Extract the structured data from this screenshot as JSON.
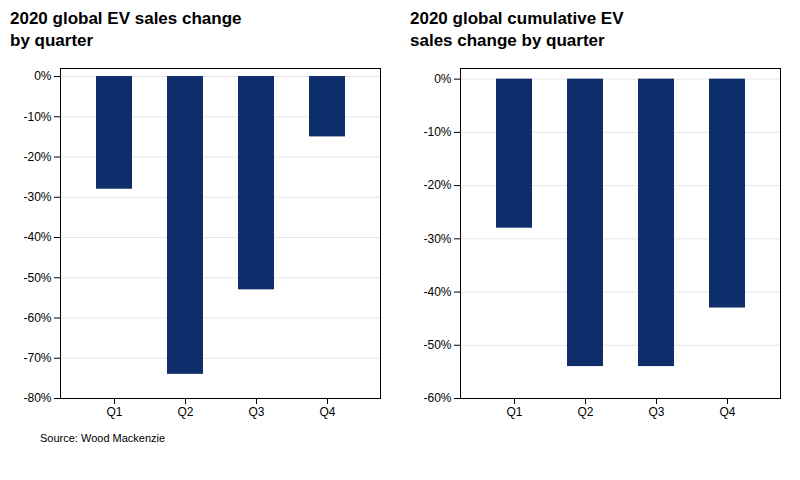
{
  "chart_data": [
    {
      "type": "bar",
      "title": "2020 global EV sales change\nby quarter",
      "categories": [
        "Q1",
        "Q2",
        "Q3",
        "Q4"
      ],
      "values": [
        -28,
        -74,
        -53,
        -15
      ],
      "color": "#0d2d6b",
      "ylim": [
        -80,
        2
      ],
      "yticks": [
        {
          "value": 0,
          "label": "0%"
        },
        {
          "value": -10,
          "label": "-10%"
        },
        {
          "value": -20,
          "label": "-20%"
        },
        {
          "value": -30,
          "label": "-30%"
        },
        {
          "value": -40,
          "label": "-40%"
        },
        {
          "value": -50,
          "label": "-50%"
        },
        {
          "value": -60,
          "label": "-60%"
        },
        {
          "value": -70,
          "label": "-70%"
        },
        {
          "value": -80,
          "label": "-80%"
        }
      ],
      "grid": true
    },
    {
      "type": "bar",
      "title": "2020 global cumulative EV\nsales change by quarter",
      "categories": [
        "Q1",
        "Q2",
        "Q3",
        "Q4"
      ],
      "values": [
        -28,
        -54,
        -54,
        -43
      ],
      "color": "#0d2d6b",
      "ylim": [
        -60,
        2
      ],
      "yticks": [
        {
          "value": 0,
          "label": "0%"
        },
        {
          "value": -10,
          "label": "-10%"
        },
        {
          "value": -20,
          "label": "-20%"
        },
        {
          "value": -30,
          "label": "-30%"
        },
        {
          "value": -40,
          "label": "-40%"
        },
        {
          "value": -50,
          "label": "-50%"
        },
        {
          "value": -60,
          "label": "-60%"
        }
      ],
      "grid": true
    }
  ],
  "source": "Source: Wood Mackenzie"
}
